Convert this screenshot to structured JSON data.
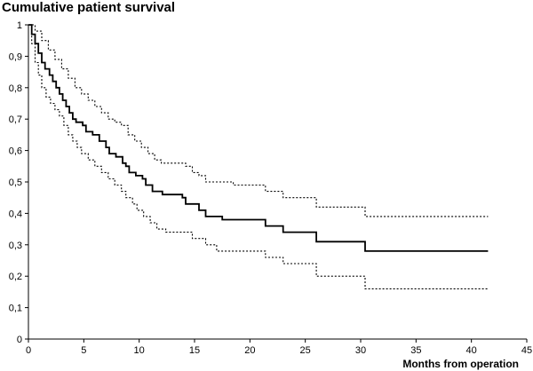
{
  "chart_data": {
    "type": "line",
    "title": "Cumulative patient survival",
    "xlabel": "Months from operation",
    "ylabel": "",
    "xlim": [
      0,
      45
    ],
    "ylim": [
      0,
      1
    ],
    "x_ticks": [
      "0",
      "5",
      "10",
      "15",
      "20",
      "25",
      "30",
      "35",
      "40",
      "45"
    ],
    "y_ticks": [
      "0",
      "0,1",
      "0,2",
      "0,3",
      "0,4",
      "0,5",
      "0,6",
      "0,7",
      "0,8",
      "0,9",
      "1"
    ],
    "grid": false,
    "legend": "none",
    "series": [
      {
        "style": "solid",
        "points": [
          [
            0,
            1
          ],
          [
            0.3,
            0.97
          ],
          [
            0.6,
            0.94
          ],
          [
            0.9,
            0.91
          ],
          [
            1.2,
            0.88
          ],
          [
            1.5,
            0.86
          ],
          [
            1.9,
            0.84
          ],
          [
            2.2,
            0.82
          ],
          [
            2.5,
            0.8
          ],
          [
            2.8,
            0.78
          ],
          [
            3.1,
            0.76
          ],
          [
            3.4,
            0.74
          ],
          [
            3.7,
            0.72
          ],
          [
            4,
            0.7
          ],
          [
            4.3,
            0.69
          ],
          [
            4.9,
            0.68
          ],
          [
            5.2,
            0.66
          ],
          [
            5.8,
            0.65
          ],
          [
            6.4,
            0.63
          ],
          [
            7,
            0.61
          ],
          [
            7.3,
            0.59
          ],
          [
            7.9,
            0.58
          ],
          [
            8.5,
            0.56
          ],
          [
            8.8,
            0.55
          ],
          [
            9.1,
            0.53
          ],
          [
            9.7,
            0.52
          ],
          [
            10.3,
            0.51
          ],
          [
            10.6,
            0.49
          ],
          [
            11.2,
            0.47
          ],
          [
            12.1,
            0.46
          ],
          [
            13.9,
            0.45
          ],
          [
            14.2,
            0.43
          ],
          [
            15.4,
            0.41
          ],
          [
            16,
            0.39
          ],
          [
            17.5,
            0.38
          ],
          [
            21.4,
            0.36
          ],
          [
            23,
            0.34
          ],
          [
            26,
            0.31
          ],
          [
            30.4,
            0.28
          ],
          [
            41.5,
            0.28
          ]
        ]
      },
      {
        "style": "dotted",
        "points": [
          [
            0,
            1
          ],
          [
            0.6,
            0.98
          ],
          [
            1.2,
            0.95
          ],
          [
            1.8,
            0.92
          ],
          [
            2.4,
            0.89
          ],
          [
            3,
            0.86
          ],
          [
            3.6,
            0.83
          ],
          [
            4.2,
            0.8
          ],
          [
            4.8,
            0.78
          ],
          [
            5.4,
            0.76
          ],
          [
            6,
            0.74
          ],
          [
            6.6,
            0.72
          ],
          [
            7.2,
            0.7
          ],
          [
            7.8,
            0.69
          ],
          [
            8.4,
            0.68
          ],
          [
            9,
            0.65
          ],
          [
            9.6,
            0.63
          ],
          [
            10.2,
            0.61
          ],
          [
            10.8,
            0.59
          ],
          [
            11.4,
            0.57
          ],
          [
            12,
            0.56
          ],
          [
            14.2,
            0.55
          ],
          [
            14.8,
            0.53
          ],
          [
            15.4,
            0.52
          ],
          [
            16,
            0.5
          ],
          [
            18.5,
            0.49
          ],
          [
            21.4,
            0.47
          ],
          [
            23,
            0.45
          ],
          [
            26,
            0.42
          ],
          [
            30.4,
            0.39
          ],
          [
            41.5,
            0.39
          ]
        ]
      },
      {
        "style": "dotted",
        "points": [
          [
            0,
            1
          ],
          [
            0.3,
            0.94
          ],
          [
            0.6,
            0.88
          ],
          [
            0.9,
            0.84
          ],
          [
            1.2,
            0.8
          ],
          [
            1.6,
            0.77
          ],
          [
            2,
            0.75
          ],
          [
            2.4,
            0.73
          ],
          [
            2.8,
            0.71
          ],
          [
            3.2,
            0.68
          ],
          [
            3.6,
            0.65
          ],
          [
            4,
            0.63
          ],
          [
            4.4,
            0.61
          ],
          [
            4.8,
            0.59
          ],
          [
            5.4,
            0.57
          ],
          [
            6,
            0.55
          ],
          [
            6.6,
            0.53
          ],
          [
            7.2,
            0.51
          ],
          [
            7.8,
            0.49
          ],
          [
            8.4,
            0.47
          ],
          [
            8.8,
            0.45
          ],
          [
            9.4,
            0.43
          ],
          [
            9.8,
            0.41
          ],
          [
            10.4,
            0.39
          ],
          [
            11,
            0.37
          ],
          [
            11.6,
            0.35
          ],
          [
            12.4,
            0.34
          ],
          [
            14.8,
            0.32
          ],
          [
            16,
            0.3
          ],
          [
            17,
            0.28
          ],
          [
            21.4,
            0.26
          ],
          [
            23,
            0.24
          ],
          [
            26,
            0.2
          ],
          [
            30.4,
            0.16
          ],
          [
            41.5,
            0.16
          ]
        ]
      }
    ]
  }
}
